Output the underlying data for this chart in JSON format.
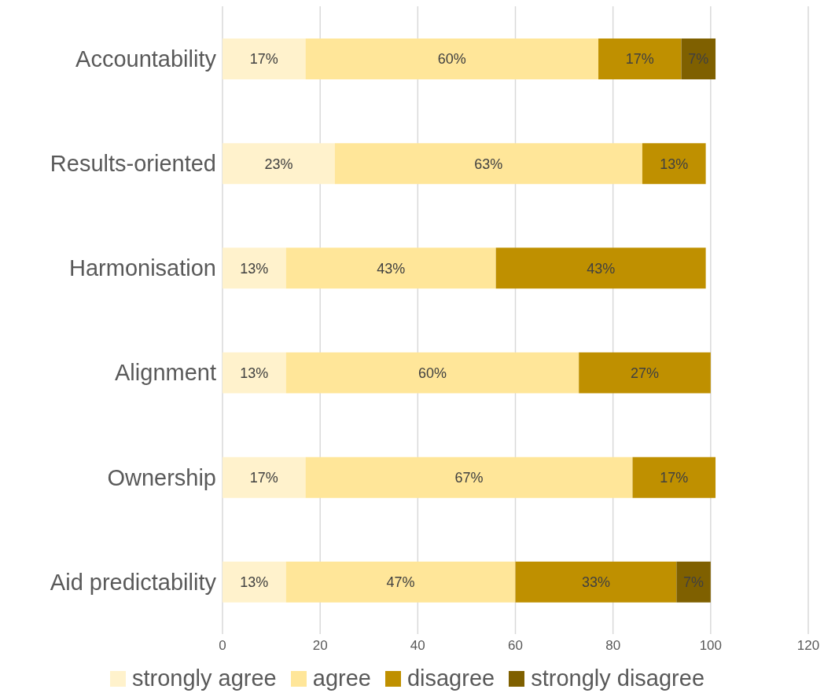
{
  "chart_data": {
    "type": "bar",
    "orientation": "horizontal",
    "stacked": true,
    "categories": [
      "Accountability",
      "Results-oriented",
      "Harmonisation",
      "Alignment",
      "Ownership",
      "Aid predictability"
    ],
    "series": [
      {
        "name": "strongly agree",
        "color": "#fff2cc",
        "values": [
          17,
          23,
          13,
          13,
          17,
          13
        ],
        "value_labels": [
          "17%",
          "23%",
          "13%",
          "13%",
          "17%",
          "13%"
        ]
      },
      {
        "name": "agree",
        "color": "#ffe699",
        "values": [
          60,
          63,
          43,
          60,
          67,
          47
        ],
        "value_labels": [
          "60%",
          "63%",
          "43%",
          "60%",
          "67%",
          "47%"
        ]
      },
      {
        "name": "disagree",
        "color": "#bf9000",
        "values": [
          17,
          13,
          43,
          27,
          17,
          33
        ],
        "value_labels": [
          "17%",
          "13%",
          "43%",
          "27%",
          "17%",
          "33%"
        ]
      },
      {
        "name": "strongly disagree",
        "color": "#7f6000",
        "values": [
          7,
          null,
          null,
          null,
          null,
          7
        ],
        "value_labels": [
          "7%",
          null,
          null,
          null,
          null,
          "7%"
        ]
      }
    ],
    "xlim": [
      0,
      120
    ],
    "xticks": [
      0,
      20,
      40,
      60,
      80,
      100,
      120
    ],
    "grid": "x",
    "legend": "bottom"
  }
}
